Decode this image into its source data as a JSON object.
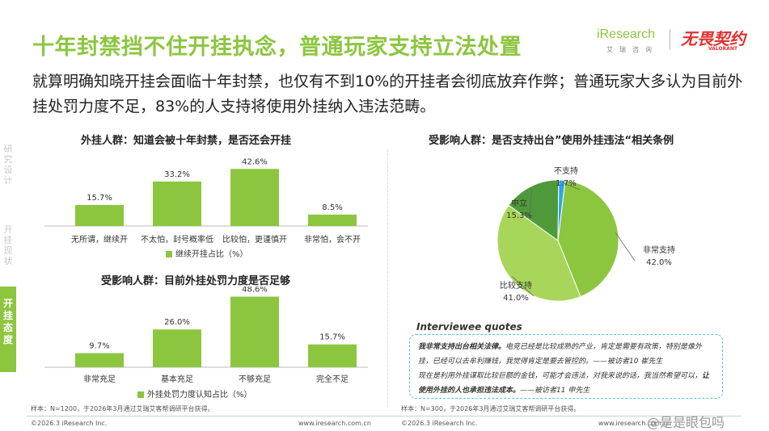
{
  "title": "十年封禁挡不住开挂执念，普通玩家支持立法处置",
  "subtitle": "就算明确知晓开挂会面临十年封禁，也仅有不到10%的开挂者会彻底放弃作弊；普通玩家大多认为目前外挂处罚力度不足，83%的人支持将使用外挂纳入违法范畴。",
  "logo": {
    "brand": "iResearch",
    "brand_sub": "艾瑞咨询",
    "game": "无畏契约",
    "game_sub": "VALORANT"
  },
  "sidebar": {
    "item1": "研究设计",
    "item2": "开挂现状",
    "item3": "开挂态度"
  },
  "chart_data": [
    {
      "type": "bar",
      "title": "外挂人群：知道会被十年封禁，是否还会开挂",
      "categories": [
        "无所谓，继续开",
        "不太怕，封号概率低",
        "比较怕，更谨慎开",
        "非常怕，会不开"
      ],
      "values": [
        15.7,
        33.2,
        42.6,
        8.5
      ],
      "labels": [
        "15.7%",
        "33.2%",
        "42.6%",
        "8.5%"
      ],
      "legend": "继续开挂占比（%）",
      "ylim": [
        0,
        50
      ],
      "color": "#8cc63f"
    },
    {
      "type": "bar",
      "title": "受影响人群：目前外挂处罚力度是否足够",
      "categories": [
        "非常充足",
        "基本充足",
        "不够充足",
        "完全不足"
      ],
      "values": [
        9.7,
        26.0,
        48.6,
        15.7
      ],
      "labels": [
        "9.7%",
        "26.0%",
        "48.6%",
        "15.7%"
      ],
      "legend": "外挂处罚力度认知占比（%）",
      "ylim": [
        0,
        50
      ],
      "color": "#8cc63f"
    },
    {
      "type": "pie",
      "title": "受影响人群：是否支持出台”使用外挂违法“相关条例",
      "categories": [
        "非常支持",
        "比较支持",
        "中立",
        "不支持"
      ],
      "values": [
        42.0,
        41.0,
        15.3,
        1.7
      ],
      "labels": [
        "42.0%",
        "41.0%",
        "15.3%",
        "1.7%"
      ],
      "colors": [
        "#8cc63f",
        "#a8d65a",
        "#4e9a3a",
        "#29a8e0"
      ]
    }
  ],
  "notes": {
    "left": "样本：N=1200，于2026年3月通过艾瑞艾客帮调研平台获得。",
    "right": "样本：N=300，于2026年3月通过艾瑞艾客帮调研平台获得。"
  },
  "footer": {
    "copyright_left": "©2026.3 iResearch Inc.",
    "url_left": "www.iresearch.com.cn",
    "copyright_right": "©2026.3 iResearch Inc.",
    "url_right": "www.iresearch.com.cn"
  },
  "quotes": {
    "heading": "Interviewee quotes",
    "q1_bold": "我非常支持出台相关法律。",
    "q1_text": "电竞已经是比较成熟的产业，肯定是需要有政策，特别是像外挂，已经可以去牟利赚钱，我觉得肯定是要去管控的。——被访者10 崔先生",
    "q2_text_a": "现在是利用外挂谋取比较巨额的金钱，可能才会违法，对我来说的话，我当然希望可以，",
    "q2_bold": "让使用外挂的人也承担违法成本。",
    "q2_text_b": "——被访者11 申先生"
  },
  "watermark": "@是是眼包吗"
}
